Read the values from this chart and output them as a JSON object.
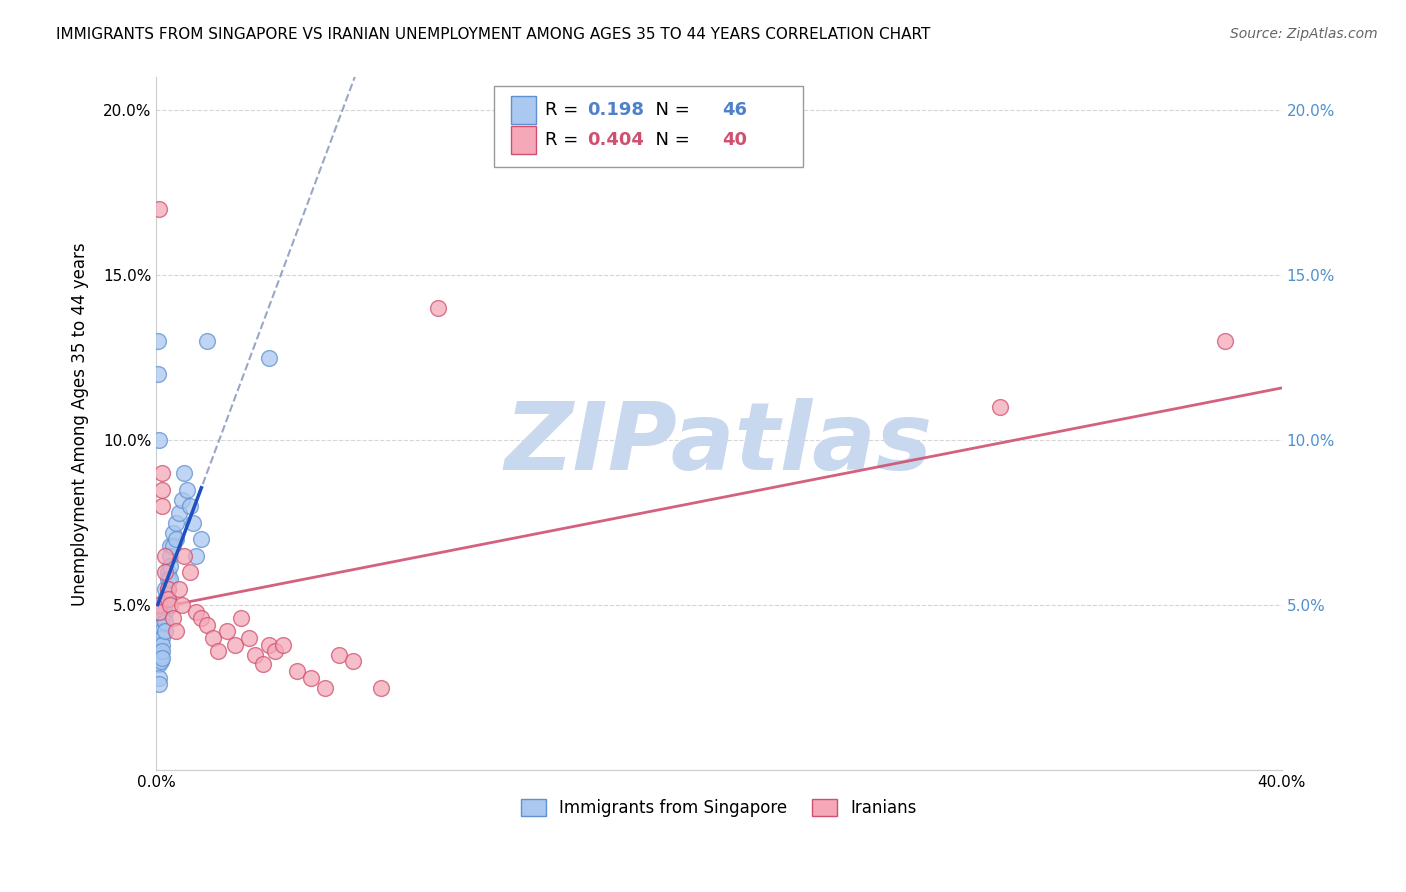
{
  "title": "IMMIGRANTS FROM SINGAPORE VS IRANIAN UNEMPLOYMENT AMONG AGES 35 TO 44 YEARS CORRELATION CHART",
  "source": "Source: ZipAtlas.com",
  "ylabel": "Unemployment Among Ages 35 to 44 years",
  "xlim": [
    0.0,
    0.4
  ],
  "ylim": [
    0.0,
    0.21
  ],
  "series1_label": "Immigrants from Singapore",
  "series1_color": "#aac8f0",
  "series1_edge": "#6090d0",
  "series1_trend_color": "#8090b8",
  "series1_R": "0.198",
  "series1_N": "46",
  "series1_R_color": "#5080c8",
  "series2_label": "Iranians",
  "series2_color": "#f4a8b8",
  "series2_edge": "#d05070",
  "series2_trend_color": "#d05070",
  "series2_R": "0.404",
  "series2_N": "40",
  "series2_R_color": "#d05070",
  "watermark_color": "#c8d8ee",
  "grid_color": "#cccccc",
  "right_tick_color": "#5090d0",
  "title_fontsize": 11,
  "source_fontsize": 10,
  "legend_fontsize": 13,
  "axis_fontsize": 11,
  "scatter_size": 130,
  "singapore_x": [
    0.0005,
    0.0007,
    0.001,
    0.001,
    0.001,
    0.001,
    0.001,
    0.001,
    0.0015,
    0.0015,
    0.002,
    0.002,
    0.002,
    0.002,
    0.002,
    0.002,
    0.002,
    0.002,
    0.002,
    0.003,
    0.003,
    0.003,
    0.003,
    0.003,
    0.004,
    0.004,
    0.004,
    0.004,
    0.005,
    0.005,
    0.005,
    0.005,
    0.006,
    0.006,
    0.007,
    0.007,
    0.008,
    0.009,
    0.01,
    0.011,
    0.012,
    0.013,
    0.014,
    0.016,
    0.018,
    0.04
  ],
  "singapore_y": [
    0.13,
    0.12,
    0.1,
    0.038,
    0.036,
    0.032,
    0.028,
    0.026,
    0.035,
    0.033,
    0.05,
    0.048,
    0.046,
    0.044,
    0.042,
    0.04,
    0.038,
    0.036,
    0.034,
    0.055,
    0.052,
    0.048,
    0.045,
    0.042,
    0.06,
    0.058,
    0.055,
    0.052,
    0.068,
    0.065,
    0.062,
    0.058,
    0.072,
    0.068,
    0.075,
    0.07,
    0.078,
    0.082,
    0.09,
    0.085,
    0.08,
    0.075,
    0.065,
    0.07,
    0.13,
    0.125
  ],
  "iranian_x": [
    0.001,
    0.001,
    0.001,
    0.002,
    0.002,
    0.002,
    0.003,
    0.003,
    0.004,
    0.004,
    0.005,
    0.006,
    0.007,
    0.008,
    0.009,
    0.01,
    0.012,
    0.014,
    0.016,
    0.018,
    0.02,
    0.022,
    0.025,
    0.028,
    0.03,
    0.033,
    0.035,
    0.038,
    0.04,
    0.042,
    0.045,
    0.05,
    0.055,
    0.06,
    0.065,
    0.07,
    0.08,
    0.1,
    0.3,
    0.38
  ],
  "iranian_y": [
    0.17,
    0.05,
    0.048,
    0.09,
    0.085,
    0.08,
    0.065,
    0.06,
    0.055,
    0.052,
    0.05,
    0.046,
    0.042,
    0.055,
    0.05,
    0.065,
    0.06,
    0.048,
    0.046,
    0.044,
    0.04,
    0.036,
    0.042,
    0.038,
    0.046,
    0.04,
    0.035,
    0.032,
    0.038,
    0.036,
    0.038,
    0.03,
    0.028,
    0.025,
    0.035,
    0.033,
    0.025,
    0.14,
    0.11,
    0.13
  ]
}
